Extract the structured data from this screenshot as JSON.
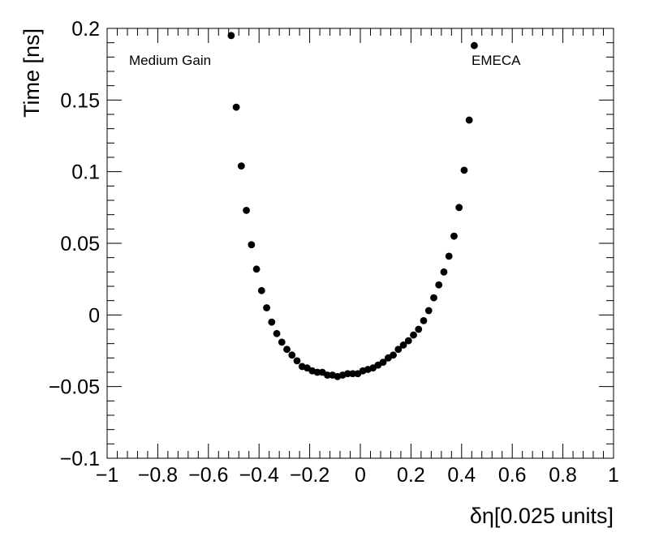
{
  "chart_data": {
    "type": "scatter",
    "xlabel": "δη[0.025 units]",
    "ylabel": "Time [ns]",
    "xlim": [
      -1,
      1
    ],
    "ylim": [
      -0.1,
      0.2
    ],
    "x_major_ticks": [
      -1,
      -0.8,
      -0.6,
      -0.4,
      -0.2,
      0,
      0.2,
      0.4,
      0.6,
      0.8,
      1
    ],
    "x_tick_labels": [
      "−1",
      "−0.8",
      "−0.6",
      "−0.4",
      "−0.2",
      "0",
      "0.2",
      "0.4",
      "0.6",
      "0.8",
      "1"
    ],
    "y_major_ticks": [
      -0.1,
      -0.05,
      0,
      0.05,
      0.1,
      0.15,
      0.2
    ],
    "y_tick_labels": [
      "−0.1",
      "−0.05",
      "0",
      "0.05",
      "0.1",
      "0.15",
      "0.2"
    ],
    "grid": false,
    "annotations": [
      {
        "text": "Medium Gain",
        "position": "top-left"
      },
      {
        "text": "EMECA",
        "position": "top-right"
      }
    ],
    "series": [
      {
        "marker_color": "#000000",
        "x": [
          -0.51,
          -0.49,
          -0.47,
          -0.45,
          -0.43,
          -0.41,
          -0.39,
          -0.37,
          -0.35,
          -0.33,
          -0.31,
          -0.29,
          -0.27,
          -0.25,
          -0.23,
          -0.21,
          -0.19,
          -0.17,
          -0.15,
          -0.13,
          -0.11,
          -0.09,
          -0.07,
          -0.05,
          -0.03,
          -0.01,
          0.01,
          0.03,
          0.05,
          0.07,
          0.09,
          0.11,
          0.13,
          0.15,
          0.17,
          0.19,
          0.21,
          0.23,
          0.25,
          0.27,
          0.29,
          0.31,
          0.33,
          0.35,
          0.37,
          0.39,
          0.41,
          0.43,
          0.45
        ],
        "y": [
          0.195,
          0.145,
          0.104,
          0.073,
          0.049,
          0.032,
          0.017,
          0.005,
          -0.005,
          -0.013,
          -0.019,
          -0.024,
          -0.028,
          -0.032,
          -0.036,
          -0.037,
          -0.039,
          -0.04,
          -0.04,
          -0.042,
          -0.042,
          -0.043,
          -0.042,
          -0.041,
          -0.041,
          -0.041,
          -0.039,
          -0.038,
          -0.037,
          -0.035,
          -0.033,
          -0.03,
          -0.028,
          -0.024,
          -0.021,
          -0.018,
          -0.014,
          -0.01,
          -0.004,
          0.003,
          0.012,
          0.021,
          0.03,
          0.041,
          0.055,
          0.075,
          0.101,
          0.136,
          0.188
        ]
      }
    ]
  }
}
